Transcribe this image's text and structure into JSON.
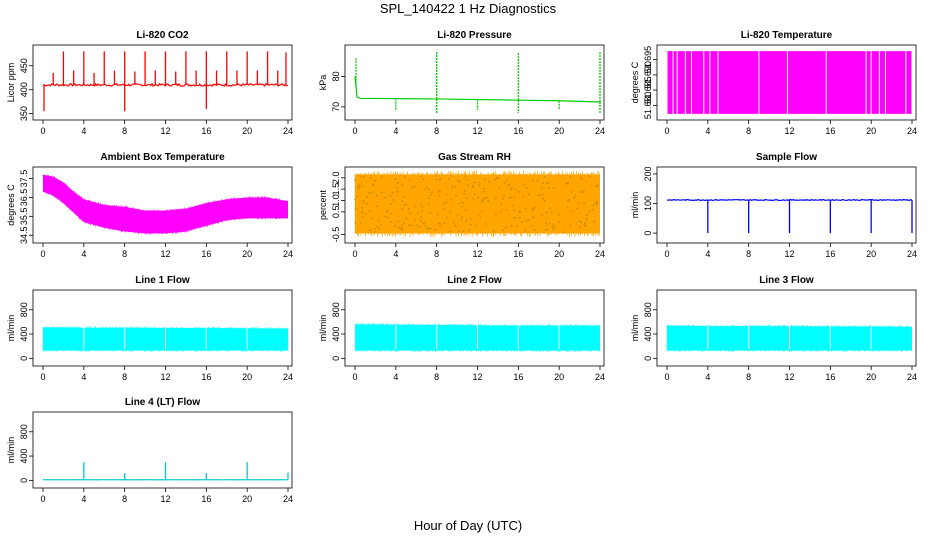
{
  "page": {
    "title": "SPL_140422  1 Hz Diagnostics",
    "xlabel": "Hour of Day (UTC)"
  },
  "chart_data": [
    {
      "type": "line",
      "title": "Li-820 CO2",
      "ylabel": "Licor ppm",
      "color": "#ff0000",
      "xlim": [
        0,
        24
      ],
      "ylim": [
        345,
        485
      ],
      "xticks": [
        0,
        4,
        8,
        12,
        16,
        20,
        24
      ],
      "yticks": [
        350,
        400,
        450
      ],
      "baseline": 410,
      "noise": 5,
      "spikes": [
        {
          "x": 1.0,
          "y": 435
        },
        {
          "x": 2.0,
          "y": 480
        },
        {
          "x": 3.0,
          "y": 440
        },
        {
          "x": 4.0,
          "y": 480
        },
        {
          "x": 5.0,
          "y": 435
        },
        {
          "x": 6.0,
          "y": 480
        },
        {
          "x": 7.0,
          "y": 440
        },
        {
          "x": 8.0,
          "y": 480
        },
        {
          "x": 8.0,
          "y": 355
        },
        {
          "x": 9.0,
          "y": 438
        },
        {
          "x": 10.0,
          "y": 480
        },
        {
          "x": 11.0,
          "y": 440
        },
        {
          "x": 12.0,
          "y": 480
        },
        {
          "x": 13.0,
          "y": 438
        },
        {
          "x": 14.0,
          "y": 480
        },
        {
          "x": 15.0,
          "y": 440
        },
        {
          "x": 16.0,
          "y": 480
        },
        {
          "x": 16.0,
          "y": 360
        },
        {
          "x": 17.0,
          "y": 440
        },
        {
          "x": 18.0,
          "y": 480
        },
        {
          "x": 19.0,
          "y": 440
        },
        {
          "x": 20.0,
          "y": 480
        },
        {
          "x": 21.0,
          "y": 440
        },
        {
          "x": 22.0,
          "y": 480
        },
        {
          "x": 23.0,
          "y": 440
        },
        {
          "x": 23.8,
          "y": 478
        },
        {
          "x": 0.1,
          "y": 355
        }
      ]
    },
    {
      "type": "line",
      "title": "Li-820 Pressure",
      "ylabel": "kPa",
      "color": "#00cc00",
      "xlim": [
        0,
        24
      ],
      "ylim": [
        67,
        89
      ],
      "xticks": [
        0,
        4,
        8,
        12,
        16,
        20,
        24
      ],
      "yticks": [
        70,
        80
      ],
      "x": [
        0,
        0.2,
        0.5,
        4,
        8,
        12,
        16,
        20,
        24
      ],
      "y": [
        80,
        73.2,
        72.8,
        72.7,
        72.6,
        72.4,
        72.2,
        72.0,
        71.6
      ],
      "spikes": [
        {
          "x": 0.1,
          "y": 86
        },
        {
          "x": 4.0,
          "y": 69
        },
        {
          "x": 8.0,
          "y": 88
        },
        {
          "x": 8.0,
          "y": 68
        },
        {
          "x": 12.0,
          "y": 69
        },
        {
          "x": 16.0,
          "y": 88
        },
        {
          "x": 16.0,
          "y": 68
        },
        {
          "x": 20.0,
          "y": 69
        },
        {
          "x": 24.0,
          "y": 88
        },
        {
          "x": 24.0,
          "y": 68
        }
      ]
    },
    {
      "type": "bar",
      "title": "Li-820 Temperature",
      "ylabel": "degrees C",
      "color": "#ff00ff",
      "xlim": [
        0,
        24
      ],
      "ylim": [
        51.6765,
        51.6985
      ],
      "xticks": [
        0,
        4,
        8,
        12,
        16,
        20,
        24
      ],
      "yticks": [
        51.68,
        51.685,
        51.69,
        51.695
      ],
      "ytick_labels": [
        "51.680",
        "51.685",
        "51.690",
        "51.695"
      ],
      "gaps": [
        0.6,
        1.0,
        1.8,
        2.4,
        3.6,
        4.2,
        5.0,
        9.0,
        11.8,
        15.6,
        19.5,
        20.0,
        20.8,
        21.4,
        23.4
      ]
    },
    {
      "type": "area",
      "title": "Ambient Box Temperature",
      "ylabel": "degrees C",
      "color": "#ff00ff",
      "xlim": [
        0,
        24
      ],
      "ylim": [
        34.3,
        37.9
      ],
      "xticks": [
        0,
        4,
        8,
        12,
        16,
        20,
        24
      ],
      "yticks": [
        34.5,
        35.5,
        36.5,
        37.5
      ],
      "ytick_labels": [
        "34.5",
        "35.5",
        "36.5",
        "37.5"
      ],
      "x": [
        0,
        1,
        2,
        3,
        4,
        6,
        8,
        10,
        12,
        14,
        16,
        18,
        20,
        22,
        24
      ],
      "upper": [
        37.7,
        37.6,
        37.3,
        36.8,
        36.4,
        36.1,
        36.0,
        35.8,
        35.8,
        35.9,
        36.2,
        36.4,
        36.5,
        36.5,
        36.3
      ],
      "lower": [
        36.8,
        36.6,
        36.2,
        35.7,
        35.2,
        34.9,
        34.7,
        34.6,
        34.6,
        34.7,
        35.0,
        35.3,
        35.4,
        35.4,
        35.4
      ]
    },
    {
      "type": "area",
      "title": "Gas Stream RH",
      "ylabel": "percent",
      "color": "#ffa500",
      "xlim": [
        0,
        24
      ],
      "ylim": [
        -0.7,
        2.3
      ],
      "xticks": [
        0,
        4,
        8,
        12,
        16,
        20,
        24
      ],
      "yticks": [
        -0.5,
        0.5,
        1.0,
        1.5,
        2.0
      ],
      "ytick_labels": [
        "-0.5",
        "0.5",
        "1.0",
        "1.5",
        "2.0"
      ],
      "x": [
        0,
        24
      ],
      "upper": [
        2.15,
        2.15
      ],
      "lower": [
        -0.45,
        -0.45
      ]
    },
    {
      "type": "line",
      "title": "Sample Flow",
      "ylabel": "ml/min",
      "color": "#0000ff",
      "xlim": [
        0,
        24
      ],
      "ylim": [
        -20,
        210
      ],
      "xticks": [
        0,
        4,
        8,
        12,
        16,
        20,
        24
      ],
      "yticks": [
        0,
        100,
        200
      ],
      "baseline": 112,
      "noise": 3,
      "spikes": [
        {
          "x": 4.0,
          "y": 0
        },
        {
          "x": 8.0,
          "y": 0
        },
        {
          "x": 12.0,
          "y": 0
        },
        {
          "x": 16.0,
          "y": 0
        },
        {
          "x": 20.0,
          "y": 0
        },
        {
          "x": 24.0,
          "y": 0
        }
      ]
    },
    {
      "type": "area",
      "title": "Line 1 Flow",
      "ylabel": "ml/min",
      "color": "#00ffff",
      "xlim": [
        0,
        24
      ],
      "ylim": [
        -60,
        1060
      ],
      "xticks": [
        0,
        4,
        8,
        12,
        16,
        20,
        24
      ],
      "yticks": [
        0,
        400,
        800
      ],
      "x": [
        0,
        4,
        8,
        12,
        16,
        20,
        24
      ],
      "upper": [
        510,
        505,
        505,
        500,
        500,
        495,
        490
      ],
      "lower": [
        130,
        130,
        130,
        130,
        130,
        130,
        130
      ]
    },
    {
      "type": "area",
      "title": "Line 2 Flow",
      "ylabel": "ml/min",
      "color": "#00ffff",
      "xlim": [
        0,
        24
      ],
      "ylim": [
        -60,
        1060
      ],
      "xticks": [
        0,
        4,
        8,
        12,
        16,
        20,
        24
      ],
      "yticks": [
        0,
        400,
        800
      ],
      "x": [
        0,
        4,
        8,
        12,
        16,
        20,
        24
      ],
      "upper": [
        560,
        555,
        550,
        545,
        540,
        540,
        540
      ],
      "lower": [
        130,
        130,
        130,
        130,
        130,
        130,
        130
      ]
    },
    {
      "type": "area",
      "title": "Line 3 Flow",
      "ylabel": "ml/min",
      "color": "#00ffff",
      "xlim": [
        0,
        24
      ],
      "ylim": [
        -60,
        1060
      ],
      "xticks": [
        0,
        4,
        8,
        12,
        16,
        20,
        24
      ],
      "yticks": [
        0,
        400,
        800
      ],
      "x": [
        0,
        4,
        8,
        12,
        16,
        20,
        24
      ],
      "upper": [
        540,
        530,
        530,
        530,
        525,
        525,
        520
      ],
      "lower": [
        130,
        130,
        130,
        130,
        130,
        130,
        130
      ]
    },
    {
      "type": "line",
      "title": "Line 4 (LT) Flow",
      "ylabel": "ml/min",
      "color": "#00cccc",
      "xlim": [
        0,
        24
      ],
      "ylim": [
        -60,
        1060
      ],
      "xticks": [
        0,
        4,
        8,
        12,
        16,
        20,
        24
      ],
      "yticks": [
        0,
        400,
        800
      ],
      "baseline": 10,
      "noise": 2,
      "spikes": [
        {
          "x": 4.0,
          "y": 300
        },
        {
          "x": 8.0,
          "y": 120
        },
        {
          "x": 12.0,
          "y": 300
        },
        {
          "x": 16.0,
          "y": 120
        },
        {
          "x": 20.0,
          "y": 300
        },
        {
          "x": 24.0,
          "y": 130
        }
      ]
    }
  ]
}
